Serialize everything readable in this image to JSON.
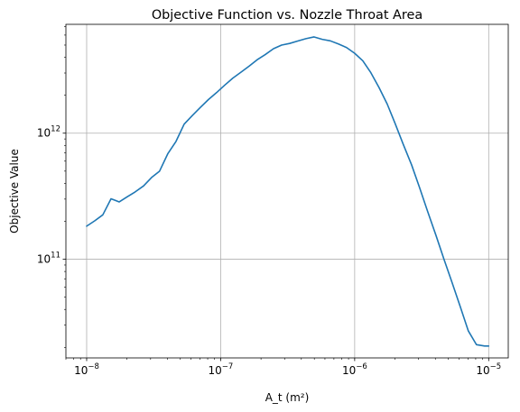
{
  "chart_data": {
    "type": "line",
    "title": "Objective Function vs. Nozzle Throat Area",
    "xlabel": "A_t (m²)",
    "ylabel": "Objective Value",
    "x_scale": "log",
    "y_scale": "log",
    "xlim": [
      7e-09,
      1.4e-05
    ],
    "ylim": [
      16500000000.0,
      7300000000000.0
    ],
    "grid": true,
    "x_ticks": [
      {
        "value": 1e-08,
        "base": "10",
        "exp": "−8"
      },
      {
        "value": 1e-07,
        "base": "10",
        "exp": "−7"
      },
      {
        "value": 1e-06,
        "base": "10",
        "exp": "−6"
      },
      {
        "value": 1e-05,
        "base": "10",
        "exp": "−5"
      }
    ],
    "y_ticks": [
      {
        "value": 100000000000.0,
        "base": "10",
        "exp": "11"
      },
      {
        "value": 1000000000000.0,
        "base": "10",
        "exp": "12"
      }
    ],
    "series": [
      {
        "color": "#1f77b4",
        "x": [
          1e-08,
          1.15e-08,
          1.32e-08,
          1.52e-08,
          1.75e-08,
          2e-08,
          2.3e-08,
          2.66e-08,
          3.05e-08,
          3.5e-08,
          4.04e-08,
          4.64e-08,
          5.34e-08,
          6.14e-08,
          7.05e-08,
          8.11e-08,
          9.33e-08,
          1.07e-07,
          1.23e-07,
          1.42e-07,
          1.63e-07,
          1.87e-07,
          2.15e-07,
          2.48e-07,
          2.85e-07,
          3.27e-07,
          3.76e-07,
          4.33e-07,
          4.98e-07,
          5.72e-07,
          6.58e-07,
          7.56e-07,
          8.7e-07,
          1e-06,
          1.15e-06,
          1.32e-06,
          1.52e-06,
          1.75e-06,
          2e-06,
          2.3e-06,
          2.66e-06,
          3.05e-06,
          3.5e-06,
          4.04e-06,
          4.64e-06,
          5.34e-06,
          6.14e-06,
          7.05e-06,
          8.11e-06,
          9.33e-06,
          1e-05
        ],
        "y": [
          183000000000.0,
          202000000000.0,
          225000000000.0,
          302000000000.0,
          285000000000.0,
          312000000000.0,
          342000000000.0,
          382000000000.0,
          445000000000.0,
          500000000000.0,
          690000000000.0,
          860000000000.0,
          1180000000000.0,
          1380000000000.0,
          1600000000000.0,
          1850000000000.0,
          2100000000000.0,
          2400000000000.0,
          2730000000000.0,
          3050000000000.0,
          3400000000000.0,
          3820000000000.0,
          4200000000000.0,
          4680000000000.0,
          5000000000000.0,
          5150000000000.0,
          5380000000000.0,
          5620000000000.0,
          5800000000000.0,
          5550000000000.0,
          5400000000000.0,
          5100000000000.0,
          4780000000000.0,
          4300000000000.0,
          3750000000000.0,
          3020000000000.0,
          2300000000000.0,
          1700000000000.0,
          1200000000000.0,
          820000000000.0,
          560000000000.0,
          370000000000.0,
          240000000000.0,
          155000000000.0,
          100000000000.0,
          65000000000.0,
          42000000000.0,
          27000000000.0,
          21000000000.0,
          20500000000.0,
          20500000000.0
        ]
      }
    ]
  }
}
